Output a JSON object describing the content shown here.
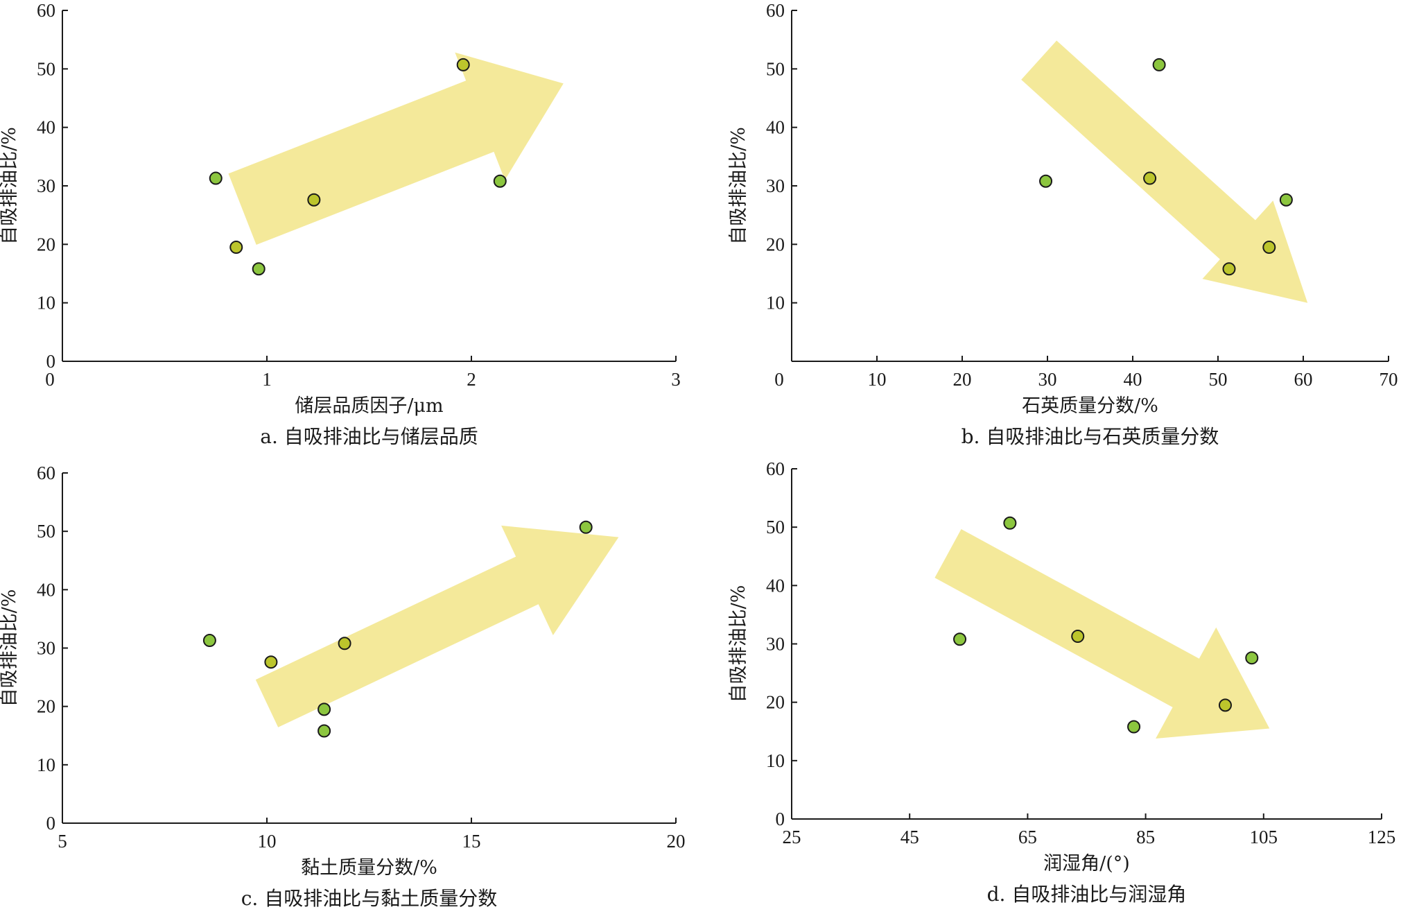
{
  "chart_data": [
    {
      "type": "scatter",
      "panel": "a",
      "caption": "a. 自吸排油比与储层品质",
      "xlabel": "储层品质因子/μm",
      "ylabel": "自吸排油比/%",
      "xlim": [
        0,
        3
      ],
      "ylim": [
        0,
        60
      ],
      "xticks": [
        0,
        1,
        2,
        3
      ],
      "yticks": [
        0,
        10,
        20,
        30,
        40,
        50,
        60
      ],
      "trend": "up",
      "points": [
        {
          "x": 0.75,
          "y": 31.3,
          "color": "green"
        },
        {
          "x": 0.85,
          "y": 19.5,
          "color": "olive"
        },
        {
          "x": 0.96,
          "y": 15.8,
          "color": "green"
        },
        {
          "x": 1.23,
          "y": 27.6,
          "color": "olive"
        },
        {
          "x": 1.96,
          "y": 50.7,
          "color": "olive"
        },
        {
          "x": 2.14,
          "y": 30.8,
          "color": "green"
        }
      ]
    },
    {
      "type": "scatter",
      "panel": "b",
      "caption": "b. 自吸排油比与石英质量分数",
      "xlabel": "石英质量分数/%",
      "ylabel": "自吸排油比/%",
      "xlim": [
        0,
        70
      ],
      "ylim": [
        0,
        60
      ],
      "xticks": [
        0,
        10,
        20,
        30,
        40,
        50,
        60,
        70
      ],
      "yticks": [
        10,
        20,
        30,
        40,
        50,
        60
      ],
      "trend": "down",
      "points": [
        {
          "x": 29.8,
          "y": 30.8,
          "color": "green"
        },
        {
          "x": 42.0,
          "y": 31.3,
          "color": "olive"
        },
        {
          "x": 43.1,
          "y": 50.7,
          "color": "green"
        },
        {
          "x": 51.3,
          "y": 15.8,
          "color": "olive"
        },
        {
          "x": 56.0,
          "y": 19.5,
          "color": "olive"
        },
        {
          "x": 58.0,
          "y": 27.6,
          "color": "green"
        }
      ]
    },
    {
      "type": "scatter",
      "panel": "c",
      "caption": "c. 自吸排油比与黏土质量分数",
      "xlabel": "黏土质量分数/%",
      "ylabel": "自吸排油比/%",
      "xlim": [
        5,
        20
      ],
      "ylim": [
        0,
        60
      ],
      "xticks": [
        5,
        10,
        15,
        20
      ],
      "yticks": [
        0,
        10,
        20,
        30,
        40,
        50,
        60
      ],
      "trend": "up",
      "points": [
        {
          "x": 8.6,
          "y": 31.3,
          "color": "green"
        },
        {
          "x": 10.1,
          "y": 27.6,
          "color": "olive"
        },
        {
          "x": 11.4,
          "y": 19.5,
          "color": "green"
        },
        {
          "x": 11.4,
          "y": 15.8,
          "color": "green"
        },
        {
          "x": 11.9,
          "y": 30.8,
          "color": "olive"
        },
        {
          "x": 17.8,
          "y": 50.7,
          "color": "green"
        }
      ]
    },
    {
      "type": "scatter",
      "panel": "d",
      "caption": "d. 自吸排油比与润湿角",
      "xlabel": "润湿角/(°)",
      "ylabel": "自吸排油比/%",
      "xlim": [
        25,
        125
      ],
      "ylim": [
        0,
        60
      ],
      "xticks": [
        25,
        45,
        65,
        85,
        105,
        125
      ],
      "yticks": [
        0,
        10,
        20,
        30,
        40,
        50,
        60
      ],
      "trend": "down",
      "points": [
        {
          "x": 53.5,
          "y": 30.8,
          "color": "green"
        },
        {
          "x": 62.0,
          "y": 50.7,
          "color": "green"
        },
        {
          "x": 73.5,
          "y": 31.3,
          "color": "olive"
        },
        {
          "x": 83.0,
          "y": 15.8,
          "color": "green"
        },
        {
          "x": 98.5,
          "y": 19.5,
          "color": "olive"
        },
        {
          "x": 103.0,
          "y": 27.6,
          "color": "green"
        }
      ]
    }
  ],
  "colors": {
    "arrow": "#f3e78f",
    "point_green": "#8cc63f",
    "point_olive": "#bcc52c",
    "point_edge": "#1a1a1a",
    "axis": "#1a1a1a"
  }
}
